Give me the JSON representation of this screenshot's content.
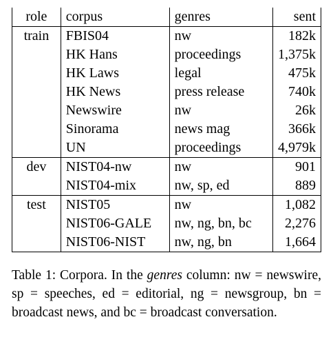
{
  "table": {
    "headers": {
      "role": "role",
      "corpus": "corpus",
      "genres": "genres",
      "sent": "sent"
    },
    "groups": [
      {
        "role": "train",
        "rows": [
          {
            "corpus": "FBIS04",
            "genres": "nw",
            "sent": "182k"
          },
          {
            "corpus": "HK Hans",
            "genres": "proceedings",
            "sent": "1,375k"
          },
          {
            "corpus": "HK Laws",
            "genres": "legal",
            "sent": "475k"
          },
          {
            "corpus": "HK News",
            "genres": "press release",
            "sent": "740k"
          },
          {
            "corpus": "Newswire",
            "genres": "nw",
            "sent": "26k"
          },
          {
            "corpus": "Sinorama",
            "genres": "news mag",
            "sent": "366k"
          },
          {
            "corpus": "UN",
            "genres": "proceedings",
            "sent": "4,979k"
          }
        ]
      },
      {
        "role": "dev",
        "rows": [
          {
            "corpus": "NIST04-nw",
            "genres": "nw",
            "sent": "901"
          },
          {
            "corpus": "NIST04-mix",
            "genres": "nw, sp, ed",
            "sent": "889"
          }
        ]
      },
      {
        "role": "test",
        "rows": [
          {
            "corpus": "NIST05",
            "genres": "nw",
            "sent": "1,082"
          },
          {
            "corpus": "NIST06-GALE",
            "genres": "nw, ng, bn, bc",
            "sent": "2,276"
          },
          {
            "corpus": "NIST06-NIST",
            "genres": "nw, ng, bn",
            "sent": "1,664"
          }
        ]
      }
    ]
  },
  "caption": {
    "prefix": "Table 1:  Corpora.  In the ",
    "emphasis": "genres",
    "suffix": " column:  nw = newswire, sp = speeches, ed = editorial, ng = newsgroup, bn = broadcast news, and bc = broadcast conversation."
  }
}
